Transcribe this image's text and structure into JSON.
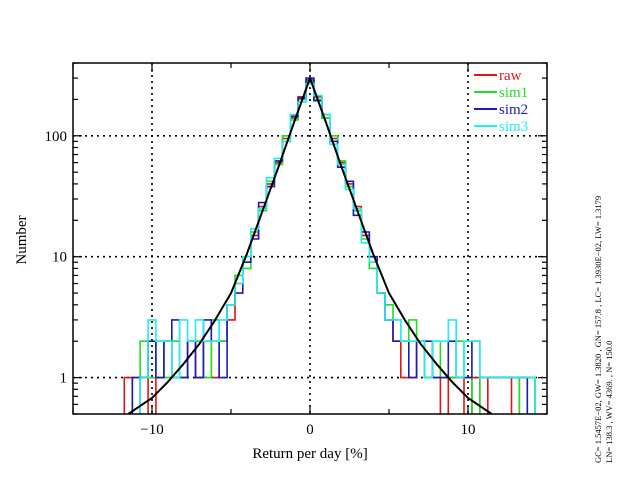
{
  "chart_data": {
    "type": "line",
    "xlabel": "Return per day [%]",
    "ylabel": "Number",
    "yscale": "log",
    "xlim": [
      -15,
      15
    ],
    "ylim": [
      0.5,
      400
    ],
    "xticks": [
      -10,
      0,
      10
    ],
    "xtick_labels": [
      "−10",
      "0",
      "10"
    ],
    "yticks": [
      1,
      10,
      100
    ],
    "ytick_labels": [
      "1",
      "10",
      "100"
    ],
    "grid": true,
    "legend_position": "top-right",
    "series": [
      {
        "name": "raw",
        "color": "#e01515",
        "style": "step"
      },
      {
        "name": "sim1",
        "color": "#22dd22",
        "style": "step"
      },
      {
        "name": "sim2",
        "color": "#1a1ac0",
        "style": "step"
      },
      {
        "name": "sim3",
        "color": "#22eeee",
        "style": "step"
      },
      {
        "name": "fit",
        "color": "#000000",
        "style": "smooth",
        "peak": 300,
        "center": 0.0,
        "label_in_legend": false
      }
    ],
    "fit_curve": {
      "x": [
        -11.5,
        -10,
        -9,
        -8,
        -7,
        -6,
        -5,
        -4,
        -3,
        -2,
        -1,
        0,
        1,
        2,
        3,
        4,
        5,
        6,
        7,
        8,
        9,
        10,
        11.5
      ],
      "y": [
        0.48,
        0.68,
        0.92,
        1.3,
        1.9,
        3.0,
        5.0,
        10.5,
        24,
        55,
        130,
        300,
        130,
        55,
        24,
        10.5,
        5.0,
        3.0,
        1.9,
        1.3,
        0.92,
        0.68,
        0.48
      ]
    },
    "step_profile": {
      "x": [
        -11.5,
        -11,
        -10.5,
        -10,
        -9.5,
        -9,
        -8.5,
        -8,
        -7.5,
        -7,
        -6.5,
        -6,
        -5.5,
        -5,
        -4.5,
        -4,
        -3.5,
        -3,
        -2.5,
        -2,
        -1.5,
        -1,
        -0.5,
        0,
        0.5,
        1,
        1.5,
        2,
        2.5,
        3,
        3.5,
        4,
        4.5,
        5,
        5.5,
        6,
        6.5,
        7,
        7.5,
        8,
        8.5,
        9,
        9.5,
        10,
        10.5,
        11,
        11.5,
        12,
        12.5,
        13,
        13.5,
        14,
        14.5
      ],
      "raw": [
        1,
        0,
        1,
        0,
        1,
        2,
        1,
        1,
        2,
        1,
        2,
        1,
        2,
        3,
        6,
        9,
        15,
        26,
        40,
        60,
        95,
        140,
        210,
        290,
        210,
        140,
        95,
        60,
        40,
        26,
        15,
        9,
        5,
        3,
        2,
        1,
        1,
        2,
        1,
        1,
        0,
        1,
        1,
        0,
        1,
        0,
        1,
        1,
        1,
        0,
        1,
        1,
        0
      ],
      "sim1": [
        0,
        1,
        2,
        1,
        2,
        1,
        2,
        1,
        2,
        2,
        1,
        3,
        2,
        4,
        7,
        8,
        16,
        24,
        42,
        58,
        100,
        135,
        200,
        280,
        200,
        140,
        100,
        62,
        38,
        24,
        14,
        8,
        5,
        4,
        3,
        2,
        3,
        2,
        1,
        2,
        1,
        1,
        2,
        1,
        0,
        1,
        1,
        1,
        1,
        1,
        0,
        1,
        0
      ],
      "sim2": [
        0,
        1,
        1,
        2,
        1,
        2,
        3,
        1,
        2,
        1,
        3,
        2,
        1,
        4,
        5,
        9,
        14,
        28,
        38,
        62,
        90,
        145,
        205,
        300,
        195,
        150,
        90,
        55,
        42,
        22,
        16,
        10,
        5,
        3,
        2,
        2,
        1,
        2,
        2,
        1,
        1,
        2,
        1,
        1,
        2,
        1,
        1,
        1,
        1,
        1,
        1,
        0,
        0
      ],
      "sim3": [
        0,
        0,
        1,
        3,
        2,
        2,
        1,
        3,
        2,
        3,
        2,
        2,
        3,
        4,
        6,
        10,
        17,
        25,
        45,
        65,
        90,
        150,
        190,
        270,
        215,
        150,
        85,
        58,
        36,
        25,
        13,
        9,
        5,
        3,
        3,
        2,
        2,
        2,
        1,
        2,
        2,
        3,
        1,
        2,
        2,
        1,
        1,
        1,
        1,
        1,
        1,
        1,
        0
      ]
    },
    "side_annotations": [
      "GC= 1.5457E−02, GW= 1.3820   , GN=  157.8    , LC= 1.3930E−02, LW= 1.3179",
      "LN=  138.3    , WV=  4369.   ,  N=  150.0"
    ]
  }
}
